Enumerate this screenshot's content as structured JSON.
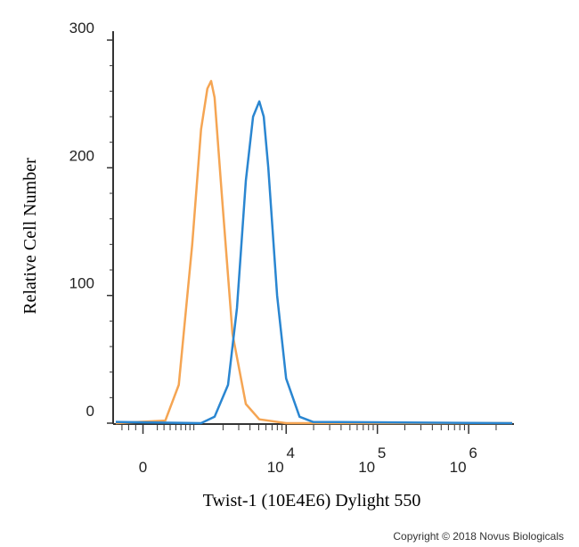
{
  "chart_data": {
    "type": "line",
    "x_label": "Twist-1 (10E4E6) Dylight 550",
    "y_label": "Relative Cell Number",
    "copyright": "Copyright © 2018 Novus Biologicals",
    "xscale": "biexponential",
    "xlim": [
      -400,
      3000000
    ],
    "xticks": [
      0,
      {
        "value": 10000,
        "label": "10",
        "exponent": "4"
      },
      {
        "value": 100000,
        "label": "10",
        "exponent": "5"
      },
      {
        "value": 1000000,
        "label": "10",
        "exponent": "6"
      }
    ],
    "ylim": [
      0,
      300
    ],
    "yticks": [
      0,
      100,
      200,
      300
    ],
    "grid": false,
    "series": [
      {
        "color": "#f5a553",
        "x": [
          -400,
          321,
          556,
          857,
          1107,
          1318,
          1458,
          1600,
          1932,
          2553,
          3602,
          5072,
          9990,
          3000000
        ],
        "values": [
          0,
          2,
          30,
          140,
          230,
          262,
          268,
          255,
          180,
          70,
          15,
          3,
          0,
          0
        ]
      },
      {
        "color": "#2a86d1",
        "x": [
          -400,
          1107,
          1600,
          2275,
          2867,
          3602,
          4325,
          5072,
          5670,
          6370,
          7950,
          9990,
          14040,
          19660,
          3000000
        ],
        "values": [
          1,
          0,
          5,
          30,
          90,
          190,
          240,
          252,
          240,
          200,
          100,
          35,
          5,
          1,
          0
        ]
      }
    ]
  }
}
